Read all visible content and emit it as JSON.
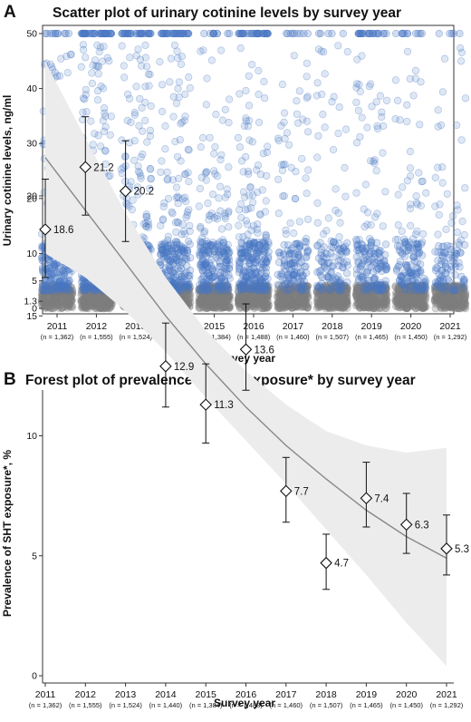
{
  "chart_data": [
    {
      "panel": "A",
      "type": "scatter",
      "title": "Scatter plot of urinary cotinine levels by survey year",
      "xlabel": "Survey year",
      "ylabel": "Urinary cotinine levels, ng/ml",
      "categories": [
        "2011",
        "2012",
        "2013",
        "2014",
        "2015",
        "2016",
        "2017",
        "2018",
        "2019",
        "2020",
        "2021"
      ],
      "sample_sizes": [
        "(n = 1,362)",
        "(n = 1,555)",
        "(n = 1,524)",
        "(n = 1,440)",
        "(n = 1,384)",
        "(n = 1,488)",
        "(n = 1,460)",
        "(n = 1,507)",
        "(n = 1,465)",
        "(n = 1,450)",
        "(n = 1,292)"
      ],
      "yticks": [
        0,
        1.3,
        5,
        10,
        20,
        30,
        40,
        50
      ],
      "ylim": [
        0,
        50
      ],
      "colors": {
        "above_threshold": "#4a78c4",
        "below_threshold": "#7f7f7f"
      },
      "point_density": [
        1.0,
        1.15,
        1.2,
        0.95,
        0.85,
        0.95,
        0.55,
        0.45,
        0.6,
        0.55,
        0.4
      ],
      "cap_density": [
        0.25,
        1.0,
        0.75,
        0.8,
        0.25,
        0.85,
        0.2,
        0.12,
        0.55,
        0.25,
        0.12
      ]
    },
    {
      "panel": "B",
      "type": "line",
      "title": "Forest plot of prevalence of SHT exposure* by survey year",
      "xlabel": "Survey year",
      "ylabel": "Prevalence of SHT exposure*, %",
      "categories": [
        "2011",
        "2012",
        "2013",
        "2014",
        "2015",
        "2016",
        "2017",
        "2018",
        "2019",
        "2020",
        "2021"
      ],
      "sample_sizes": [
        "(n = 1,362)",
        "(n = 1,555)",
        "(n = 1,524)",
        "(n = 1,440)",
        "(n = 1,384)",
        "(n = 1,488)",
        "(n = 1,460)",
        "(n = 1,507)",
        "(n = 1,465)",
        "(n = 1,450)",
        "(n = 1,292)"
      ],
      "values": [
        18.6,
        21.2,
        20.2,
        12.9,
        11.3,
        13.6,
        7.7,
        4.7,
        7.4,
        6.3,
        5.3
      ],
      "value_labels": [
        "18.6",
        "21.2",
        "20.2",
        "12.9",
        "11.3",
        "13.6",
        "7.7",
        "4.7",
        "7.4",
        "6.3",
        "5.3"
      ],
      "ci_lower": [
        16.6,
        19.2,
        18.1,
        11.2,
        9.7,
        11.9,
        6.4,
        3.6,
        6.2,
        5.1,
        4.2
      ],
      "ci_upper": [
        20.7,
        23.3,
        22.3,
        14.7,
        13.0,
        15.5,
        9.1,
        5.9,
        8.9,
        7.6,
        6.7
      ],
      "trend": [
        21.6,
        19.4,
        17.2,
        15.0,
        13.0,
        11.2,
        9.6,
        8.2,
        6.9,
        5.8,
        4.9
      ],
      "trend_band_lower": [
        17.6,
        16.6,
        15.2,
        13.5,
        11.6,
        9.8,
        8.0,
        6.1,
        4.2,
        2.2,
        0.4
      ],
      "trend_band_upper": [
        25.6,
        22.4,
        19.3,
        16.6,
        14.4,
        12.7,
        11.3,
        10.2,
        9.6,
        9.3,
        9.5
      ],
      "yticks": [
        0,
        5,
        10,
        15,
        20
      ],
      "ylim": [
        -0.5,
        25
      ],
      "colors": {
        "band": "#ececec",
        "trend": "#888888",
        "marker": "#111111"
      }
    }
  ]
}
